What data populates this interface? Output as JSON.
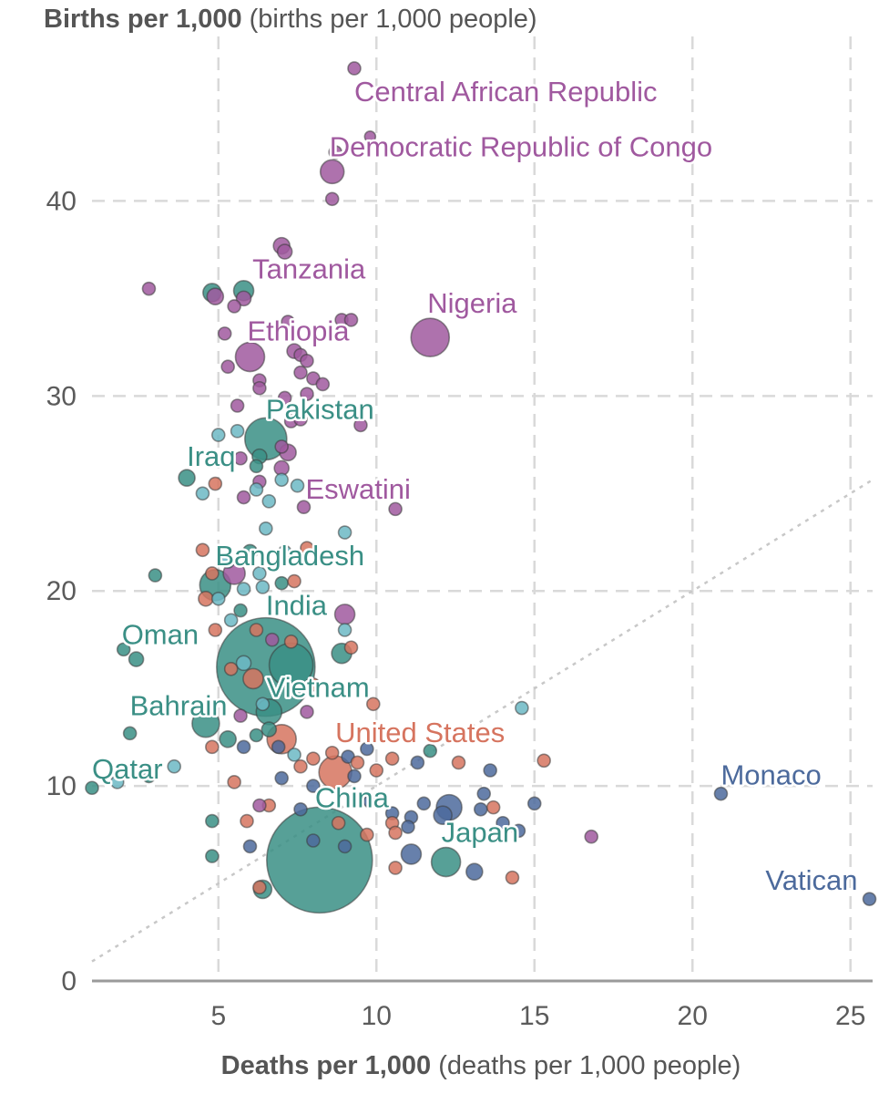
{
  "chart_data": {
    "type": "scatter",
    "title": "",
    "ylabel_bold": "Births per 1,000",
    "ylabel_unit": "(births per 1,000 people)",
    "xlabel_bold": "Deaths per 1,000",
    "xlabel_unit": "(deaths per 1,000 people)",
    "xlim": [
      1,
      25.7
    ],
    "ylim": [
      0,
      47.5
    ],
    "x_ticks": [
      5,
      10,
      15,
      20,
      25
    ],
    "y_ticks": [
      0,
      10,
      20,
      30,
      40
    ],
    "grid": true,
    "reference_line": "births equal deaths (dotted diagonal)",
    "colors": {
      "africa": "#a0599f",
      "asia": "#3a8f85",
      "asia_light": "#6cb8c4",
      "americas": "#d6745f",
      "europe": "#4c6a9c"
    },
    "points": [
      {
        "x": 9.3,
        "y": 46.8,
        "s": 7,
        "c": "africa"
      },
      {
        "x": 9.8,
        "y": 43.3,
        "s": 6,
        "c": "africa"
      },
      {
        "x": 8.6,
        "y": 41.5,
        "s": 13,
        "c": "africa"
      },
      {
        "x": 8.7,
        "y": 42.5,
        "s": 7,
        "c": "africa"
      },
      {
        "x": 8.6,
        "y": 40.1,
        "s": 7,
        "c": "africa"
      },
      {
        "x": 7.0,
        "y": 37.7,
        "s": 9,
        "c": "africa"
      },
      {
        "x": 7.1,
        "y": 37.4,
        "s": 8,
        "c": "africa"
      },
      {
        "x": 2.8,
        "y": 35.5,
        "s": 7,
        "c": "africa"
      },
      {
        "x": 4.8,
        "y": 35.3,
        "s": 10,
        "c": "asia"
      },
      {
        "x": 4.9,
        "y": 35.1,
        "s": 9,
        "c": "africa"
      },
      {
        "x": 5.8,
        "y": 35.4,
        "s": 11,
        "c": "asia"
      },
      {
        "x": 5.8,
        "y": 35.0,
        "s": 8,
        "c": "africa"
      },
      {
        "x": 5.5,
        "y": 34.6,
        "s": 7,
        "c": "africa"
      },
      {
        "x": 7.2,
        "y": 33.8,
        "s": 7,
        "c": "africa"
      },
      {
        "x": 8.9,
        "y": 33.9,
        "s": 7,
        "c": "africa"
      },
      {
        "x": 9.2,
        "y": 33.9,
        "s": 7,
        "c": "africa"
      },
      {
        "x": 5.2,
        "y": 33.2,
        "s": 7,
        "c": "africa"
      },
      {
        "x": 11.7,
        "y": 33.0,
        "s": 21,
        "c": "africa"
      },
      {
        "x": 6.0,
        "y": 32.0,
        "s": 16,
        "c": "africa"
      },
      {
        "x": 7.4,
        "y": 32.3,
        "s": 8,
        "c": "africa"
      },
      {
        "x": 7.6,
        "y": 32.1,
        "s": 7,
        "c": "africa"
      },
      {
        "x": 7.8,
        "y": 31.8,
        "s": 7,
        "c": "africa"
      },
      {
        "x": 5.3,
        "y": 31.5,
        "s": 7,
        "c": "africa"
      },
      {
        "x": 7.6,
        "y": 31.2,
        "s": 7,
        "c": "africa"
      },
      {
        "x": 8.0,
        "y": 30.9,
        "s": 7,
        "c": "africa"
      },
      {
        "x": 8.3,
        "y": 30.6,
        "s": 7,
        "c": "africa"
      },
      {
        "x": 6.3,
        "y": 30.8,
        "s": 7,
        "c": "africa"
      },
      {
        "x": 6.3,
        "y": 30.4,
        "s": 7,
        "c": "africa"
      },
      {
        "x": 7.8,
        "y": 30.1,
        "s": 7,
        "c": "africa"
      },
      {
        "x": 7.1,
        "y": 29.9,
        "s": 7,
        "c": "africa"
      },
      {
        "x": 5.6,
        "y": 29.5,
        "s": 7,
        "c": "africa"
      },
      {
        "x": 7.3,
        "y": 28.7,
        "s": 7,
        "c": "africa"
      },
      {
        "x": 9.5,
        "y": 28.5,
        "s": 7,
        "c": "africa"
      },
      {
        "x": 7.6,
        "y": 28.8,
        "s": 7,
        "c": "africa"
      },
      {
        "x": 5.0,
        "y": 28.0,
        "s": 7,
        "c": "asia_light"
      },
      {
        "x": 6.5,
        "y": 27.8,
        "s": 23,
        "c": "asia"
      },
      {
        "x": 5.6,
        "y": 28.2,
        "s": 7,
        "c": "asia_light"
      },
      {
        "x": 7.0,
        "y": 27.4,
        "s": 7,
        "c": "africa"
      },
      {
        "x": 7.2,
        "y": 27.1,
        "s": 9,
        "c": "africa"
      },
      {
        "x": 6.3,
        "y": 26.9,
        "s": 8,
        "c": "asia"
      },
      {
        "x": 5.7,
        "y": 26.8,
        "s": 7,
        "c": "africa"
      },
      {
        "x": 6.2,
        "y": 26.4,
        "s": 7,
        "c": "asia"
      },
      {
        "x": 7.0,
        "y": 26.3,
        "s": 8,
        "c": "africa"
      },
      {
        "x": 4.0,
        "y": 25.8,
        "s": 9,
        "c": "asia"
      },
      {
        "x": 6.3,
        "y": 25.6,
        "s": 7,
        "c": "africa"
      },
      {
        "x": 7.0,
        "y": 25.7,
        "s": 7,
        "c": "asia_light"
      },
      {
        "x": 7.5,
        "y": 25.4,
        "s": 7,
        "c": "asia_light"
      },
      {
        "x": 4.5,
        "y": 25.0,
        "s": 7,
        "c": "asia_light"
      },
      {
        "x": 4.9,
        "y": 25.5,
        "s": 7,
        "c": "americas"
      },
      {
        "x": 6.2,
        "y": 25.2,
        "s": 7,
        "c": "asia_light"
      },
      {
        "x": 5.8,
        "y": 24.8,
        "s": 7,
        "c": "africa"
      },
      {
        "x": 6.6,
        "y": 24.6,
        "s": 7,
        "c": "asia_light"
      },
      {
        "x": 7.7,
        "y": 24.3,
        "s": 7,
        "c": "africa"
      },
      {
        "x": 10.6,
        "y": 24.2,
        "s": 7,
        "c": "africa"
      },
      {
        "x": 6.5,
        "y": 23.2,
        "s": 7,
        "c": "asia_light"
      },
      {
        "x": 9.0,
        "y": 23.0,
        "s": 7,
        "c": "asia_light"
      },
      {
        "x": 4.5,
        "y": 22.1,
        "s": 7,
        "c": "americas"
      },
      {
        "x": 5.3,
        "y": 21.5,
        "s": 7,
        "c": "asia_light"
      },
      {
        "x": 6.0,
        "y": 22.0,
        "s": 8,
        "c": "asia"
      },
      {
        "x": 7.1,
        "y": 22.0,
        "s": 7,
        "c": "asia_light"
      },
      {
        "x": 7.8,
        "y": 22.2,
        "s": 7,
        "c": "americas"
      },
      {
        "x": 3.0,
        "y": 20.8,
        "s": 7,
        "c": "asia"
      },
      {
        "x": 4.8,
        "y": 20.9,
        "s": 7,
        "c": "americas"
      },
      {
        "x": 5.5,
        "y": 20.9,
        "s": 12,
        "c": "africa"
      },
      {
        "x": 4.9,
        "y": 20.3,
        "s": 17,
        "c": "asia"
      },
      {
        "x": 5.8,
        "y": 20.1,
        "s": 7,
        "c": "asia_light"
      },
      {
        "x": 6.4,
        "y": 20.2,
        "s": 7,
        "c": "asia_light"
      },
      {
        "x": 7.0,
        "y": 20.4,
        "s": 7,
        "c": "asia"
      },
      {
        "x": 7.4,
        "y": 20.5,
        "s": 7,
        "c": "americas"
      },
      {
        "x": 6.3,
        "y": 20.9,
        "s": 7,
        "c": "asia_light"
      },
      {
        "x": 4.6,
        "y": 19.6,
        "s": 8,
        "c": "americas"
      },
      {
        "x": 5.0,
        "y": 19.6,
        "s": 7,
        "c": "asia_light"
      },
      {
        "x": 5.7,
        "y": 19.0,
        "s": 7,
        "c": "asia"
      },
      {
        "x": 5.4,
        "y": 18.5,
        "s": 7,
        "c": "asia_light"
      },
      {
        "x": 9.0,
        "y": 18.8,
        "s": 11,
        "c": "africa"
      },
      {
        "x": 4.9,
        "y": 18.0,
        "s": 7,
        "c": "americas"
      },
      {
        "x": 6.2,
        "y": 18.0,
        "s": 7,
        "c": "americas"
      },
      {
        "x": 9.0,
        "y": 18.0,
        "s": 7,
        "c": "asia_light"
      },
      {
        "x": 6.7,
        "y": 17.5,
        "s": 7,
        "c": "africa"
      },
      {
        "x": 7.3,
        "y": 17.4,
        "s": 7,
        "c": "americas"
      },
      {
        "x": 2.0,
        "y": 17.0,
        "s": 7,
        "c": "asia"
      },
      {
        "x": 2.4,
        "y": 16.5,
        "s": 8,
        "c": "asia"
      },
      {
        "x": 8.9,
        "y": 16.8,
        "s": 11,
        "c": "asia"
      },
      {
        "x": 9.2,
        "y": 17.1,
        "s": 7,
        "c": "americas"
      },
      {
        "x": 6.5,
        "y": 16.1,
        "s": 54,
        "c": "asia"
      },
      {
        "x": 7.3,
        "y": 16.2,
        "s": 24,
        "c": "asia"
      },
      {
        "x": 5.4,
        "y": 16.0,
        "s": 7,
        "c": "americas"
      },
      {
        "x": 6.1,
        "y": 15.5,
        "s": 11,
        "c": "americas"
      },
      {
        "x": 5.8,
        "y": 16.3,
        "s": 8,
        "c": "asia_light"
      },
      {
        "x": 8.0,
        "y": 15.2,
        "s": 7,
        "c": "americas"
      },
      {
        "x": 6.4,
        "y": 14.2,
        "s": 7,
        "c": "asia_light"
      },
      {
        "x": 6.6,
        "y": 13.8,
        "s": 14,
        "c": "asia"
      },
      {
        "x": 5.7,
        "y": 13.6,
        "s": 7,
        "c": "africa"
      },
      {
        "x": 7.8,
        "y": 13.8,
        "s": 7,
        "c": "africa"
      },
      {
        "x": 9.9,
        "y": 14.2,
        "s": 7,
        "c": "americas"
      },
      {
        "x": 14.6,
        "y": 14.0,
        "s": 7,
        "c": "asia_light"
      },
      {
        "x": 4.6,
        "y": 13.2,
        "s": 15,
        "c": "asia"
      },
      {
        "x": 5.3,
        "y": 12.4,
        "s": 9,
        "c": "asia"
      },
      {
        "x": 2.2,
        "y": 12.7,
        "s": 7,
        "c": "asia"
      },
      {
        "x": 6.2,
        "y": 12.6,
        "s": 7,
        "c": "asia"
      },
      {
        "x": 7.0,
        "y": 12.4,
        "s": 16,
        "c": "americas"
      },
      {
        "x": 6.6,
        "y": 12.9,
        "s": 8,
        "c": "asia"
      },
      {
        "x": 5.8,
        "y": 12.0,
        "s": 7,
        "c": "europe"
      },
      {
        "x": 6.9,
        "y": 12.0,
        "s": 7,
        "c": "europe"
      },
      {
        "x": 4.8,
        "y": 12.0,
        "s": 7,
        "c": "americas"
      },
      {
        "x": 7.4,
        "y": 11.6,
        "s": 7,
        "c": "asia_light"
      },
      {
        "x": 8.0,
        "y": 11.4,
        "s": 7,
        "c": "americas"
      },
      {
        "x": 8.6,
        "y": 11.7,
        "s": 7,
        "c": "americas"
      },
      {
        "x": 9.1,
        "y": 11.5,
        "s": 7,
        "c": "europe"
      },
      {
        "x": 9.4,
        "y": 11.2,
        "s": 7,
        "c": "americas"
      },
      {
        "x": 9.7,
        "y": 11.9,
        "s": 7,
        "c": "europe"
      },
      {
        "x": 10.5,
        "y": 11.4,
        "s": 7,
        "c": "americas"
      },
      {
        "x": 11.3,
        "y": 11.2,
        "s": 7,
        "c": "europe"
      },
      {
        "x": 11.7,
        "y": 11.8,
        "s": 7,
        "c": "asia"
      },
      {
        "x": 12.6,
        "y": 11.2,
        "s": 7,
        "c": "americas"
      },
      {
        "x": 13.6,
        "y": 10.8,
        "s": 7,
        "c": "europe"
      },
      {
        "x": 15.3,
        "y": 11.3,
        "s": 7,
        "c": "americas"
      },
      {
        "x": 8.7,
        "y": 10.7,
        "s": 18,
        "c": "americas"
      },
      {
        "x": 7.6,
        "y": 11.0,
        "s": 7,
        "c": "americas"
      },
      {
        "x": 7.0,
        "y": 10.4,
        "s": 7,
        "c": "europe"
      },
      {
        "x": 8.0,
        "y": 10.0,
        "s": 7,
        "c": "europe"
      },
      {
        "x": 9.3,
        "y": 10.5,
        "s": 7,
        "c": "europe"
      },
      {
        "x": 10.0,
        "y": 10.8,
        "s": 7,
        "c": "americas"
      },
      {
        "x": 3.6,
        "y": 11.0,
        "s": 7,
        "c": "asia_light"
      },
      {
        "x": 2.8,
        "y": 10.5,
        "s": 7,
        "c": "asia"
      },
      {
        "x": 1.0,
        "y": 9.9,
        "s": 7,
        "c": "asia"
      },
      {
        "x": 1.8,
        "y": 10.2,
        "s": 7,
        "c": "asia_light"
      },
      {
        "x": 5.5,
        "y": 10.2,
        "s": 7,
        "c": "americas"
      },
      {
        "x": 9.8,
        "y": 9.2,
        "s": 7,
        "c": "europe"
      },
      {
        "x": 10.5,
        "y": 8.6,
        "s": 7,
        "c": "europe"
      },
      {
        "x": 11.1,
        "y": 8.4,
        "s": 7,
        "c": "europe"
      },
      {
        "x": 11.5,
        "y": 9.1,
        "s": 7,
        "c": "europe"
      },
      {
        "x": 12.3,
        "y": 8.9,
        "s": 14,
        "c": "europe"
      },
      {
        "x": 12.1,
        "y": 8.5,
        "s": 10,
        "c": "europe"
      },
      {
        "x": 13.4,
        "y": 9.6,
        "s": 7,
        "c": "europe"
      },
      {
        "x": 13.7,
        "y": 8.9,
        "s": 7,
        "c": "americas"
      },
      {
        "x": 13.3,
        "y": 8.8,
        "s": 7,
        "c": "europe"
      },
      {
        "x": 14.0,
        "y": 8.1,
        "s": 7,
        "c": "europe"
      },
      {
        "x": 15.0,
        "y": 9.1,
        "s": 7,
        "c": "europe"
      },
      {
        "x": 14.5,
        "y": 7.7,
        "s": 7,
        "c": "europe"
      },
      {
        "x": 6.6,
        "y": 9.0,
        "s": 7,
        "c": "americas"
      },
      {
        "x": 6.3,
        "y": 9.0,
        "s": 7,
        "c": "africa"
      },
      {
        "x": 7.6,
        "y": 8.8,
        "s": 7,
        "c": "europe"
      },
      {
        "x": 5.9,
        "y": 8.2,
        "s": 7,
        "c": "americas"
      },
      {
        "x": 4.8,
        "y": 8.2,
        "s": 7,
        "c": "asia"
      },
      {
        "x": 8.8,
        "y": 8.1,
        "s": 7,
        "c": "americas"
      },
      {
        "x": 10.5,
        "y": 8.1,
        "s": 7,
        "c": "americas"
      },
      {
        "x": 11.0,
        "y": 7.9,
        "s": 7,
        "c": "europe"
      },
      {
        "x": 10.6,
        "y": 7.6,
        "s": 7,
        "c": "americas"
      },
      {
        "x": 9.7,
        "y": 7.5,
        "s": 7,
        "c": "americas"
      },
      {
        "x": 8.0,
        "y": 7.2,
        "s": 7,
        "c": "europe"
      },
      {
        "x": 9.0,
        "y": 6.9,
        "s": 7,
        "c": "europe"
      },
      {
        "x": 6.0,
        "y": 6.9,
        "s": 7,
        "c": "europe"
      },
      {
        "x": 16.8,
        "y": 7.4,
        "s": 7,
        "c": "africa"
      },
      {
        "x": 4.8,
        "y": 6.4,
        "s": 7,
        "c": "asia"
      },
      {
        "x": 8.2,
        "y": 6.2,
        "s": 58,
        "c": "asia"
      },
      {
        "x": 11.1,
        "y": 6.5,
        "s": 11,
        "c": "europe"
      },
      {
        "x": 12.2,
        "y": 6.1,
        "s": 16,
        "c": "asia"
      },
      {
        "x": 13.1,
        "y": 5.6,
        "s": 9,
        "c": "europe"
      },
      {
        "x": 10.6,
        "y": 5.8,
        "s": 7,
        "c": "americas"
      },
      {
        "x": 14.3,
        "y": 5.3,
        "s": 7,
        "c": "americas"
      },
      {
        "x": 6.4,
        "y": 4.7,
        "s": 10,
        "c": "asia"
      },
      {
        "x": 6.3,
        "y": 4.8,
        "s": 7,
        "c": "americas"
      },
      {
        "x": 20.9,
        "y": 9.6,
        "s": 7,
        "c": "europe"
      },
      {
        "x": 25.6,
        "y": 4.2,
        "s": 7,
        "c": "europe"
      }
    ],
    "labels": [
      {
        "text": "Central African Republic",
        "x": 9.3,
        "y": 46.8,
        "c": "africa",
        "dx": 0,
        "dy": 36,
        "anchor": "start"
      },
      {
        "text": "Democratic Republic of Congo",
        "x": 8.6,
        "y": 41.5,
        "c": "africa",
        "dx": -3,
        "dy": -17,
        "anchor": "start"
      },
      {
        "text": "Tanzania",
        "x": 7.0,
        "y": 37.7,
        "c": "africa",
        "dx": -32,
        "dy": 36,
        "anchor": "start"
      },
      {
        "text": "Nigeria",
        "x": 11.7,
        "y": 33.0,
        "c": "africa",
        "dx": -3,
        "dy": -27,
        "anchor": "start"
      },
      {
        "text": "Ethiopia",
        "x": 6.0,
        "y": 32.0,
        "c": "africa",
        "dx": -3,
        "dy": -18,
        "anchor": "start"
      },
      {
        "text": "Pakistan",
        "x": 6.5,
        "y": 27.8,
        "c": "asia",
        "dx": 0,
        "dy": -22,
        "anchor": "start"
      },
      {
        "text": "Iraq",
        "x": 4.0,
        "y": 25.8,
        "c": "asia",
        "dx": 0,
        "dy": -13,
        "anchor": "start"
      },
      {
        "text": "Eswatini",
        "x": 7.7,
        "y": 24.3,
        "c": "africa",
        "dx": 2,
        "dy": -9,
        "anchor": "start"
      },
      {
        "text": "Bangladesh",
        "x": 4.9,
        "y": 20.3,
        "c": "asia",
        "dx": 0,
        "dy": -22,
        "anchor": "start"
      },
      {
        "text": "India",
        "x": 6.5,
        "y": 16.1,
        "c": "asia",
        "dx": 0,
        "dy": -57,
        "anchor": "start"
      },
      {
        "text": "Oman",
        "x": 2.0,
        "y": 17.0,
        "c": "asia",
        "dx": -2,
        "dy": -6,
        "anchor": "start"
      },
      {
        "text": "Vietnam",
        "x": 7.3,
        "y": 16.2,
        "c": "asia",
        "dx": -27,
        "dy": 35,
        "anchor": "start"
      },
      {
        "text": "Bahrain",
        "x": 2.2,
        "y": 12.7,
        "c": "asia",
        "dx": 0,
        "dy": -20,
        "anchor": "start"
      },
      {
        "text": "United States",
        "x": 8.7,
        "y": 10.7,
        "c": "americas",
        "dx": 0,
        "dy": -33,
        "anchor": "start"
      },
      {
        "text": "Qatar",
        "x": 1.0,
        "y": 9.9,
        "c": "asia",
        "dx": 0,
        "dy": -10,
        "anchor": "start"
      },
      {
        "text": "China",
        "x": 8.2,
        "y": 6.2,
        "c": "asia",
        "dx": -5,
        "dy": -58,
        "anchor": "start"
      },
      {
        "text": "Japan",
        "x": 12.2,
        "y": 6.1,
        "c": "asia",
        "dx": -5,
        "dy": -22,
        "anchor": "start"
      },
      {
        "text": "Monaco",
        "x": 20.9,
        "y": 9.6,
        "c": "europe",
        "dx": 0,
        "dy": -10,
        "anchor": "start"
      },
      {
        "text": "Vatican",
        "x": 25.6,
        "y": 4.2,
        "c": "europe",
        "dx": -13,
        "dy": -10,
        "anchor": "end"
      }
    ]
  }
}
